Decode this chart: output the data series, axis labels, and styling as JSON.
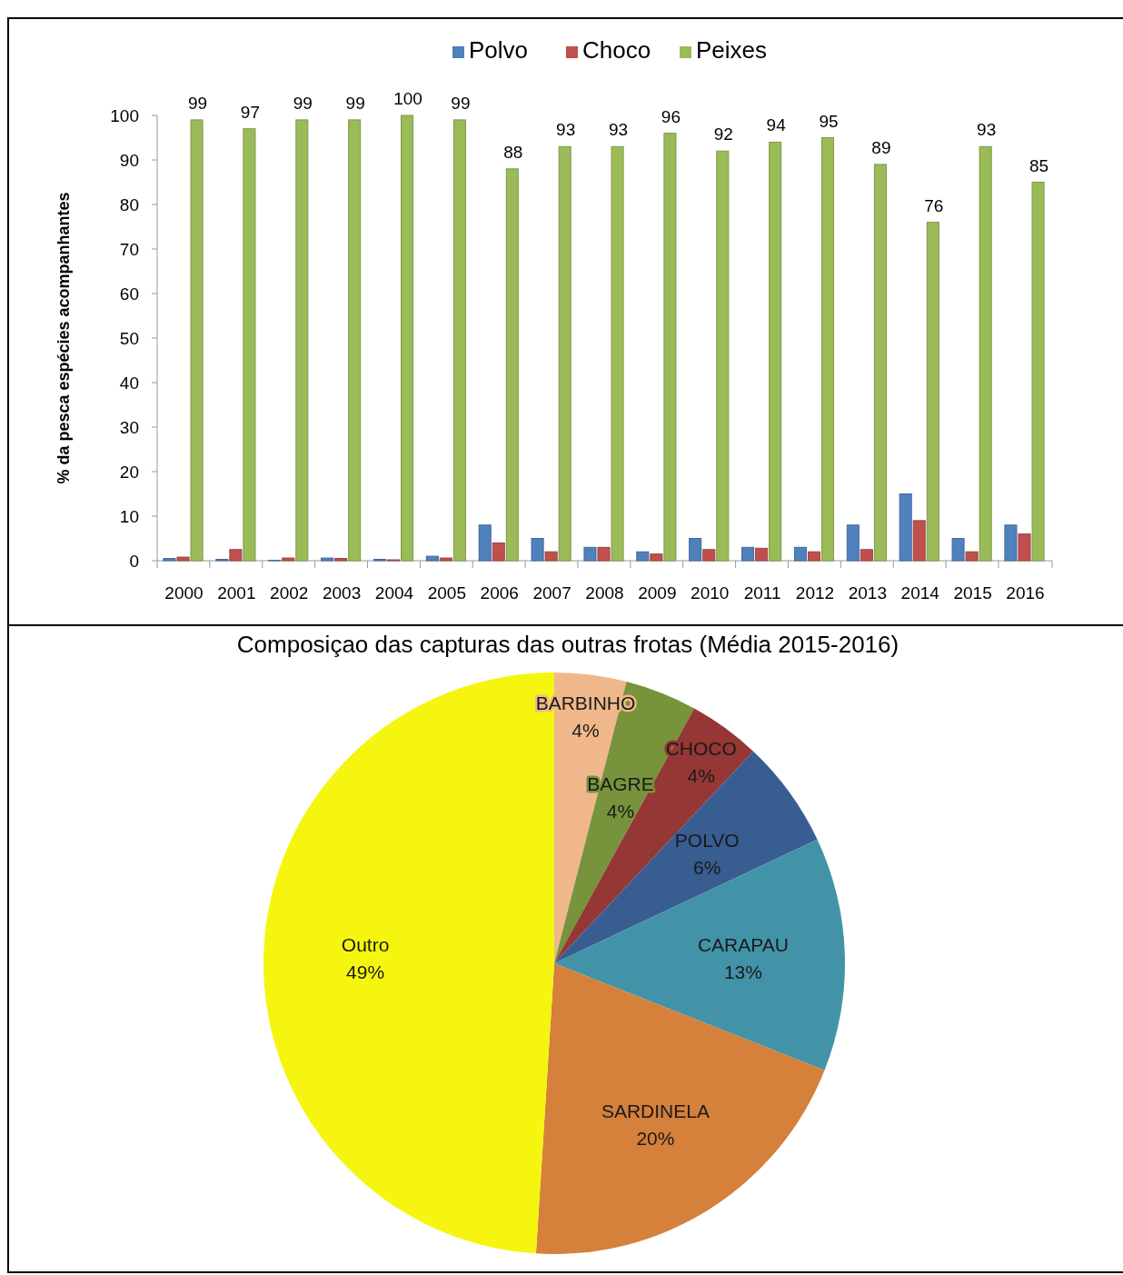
{
  "chart_data": [
    {
      "type": "bar",
      "ylabel": "% da pesca espécies acompanhantes",
      "categories": [
        "2000",
        "2001",
        "2002",
        "2003",
        "2004",
        "2005",
        "2006",
        "2007",
        "2008",
        "2009",
        "2010",
        "2011",
        "2012",
        "2013",
        "2014",
        "2015",
        "2016"
      ],
      "ylim": [
        0,
        100
      ],
      "yticks": [
        0,
        10,
        20,
        30,
        40,
        50,
        60,
        70,
        80,
        90,
        100
      ],
      "legend": "top",
      "grid": false,
      "series": [
        {
          "name": "Polvo",
          "color": "#4f81bd",
          "values": [
            0.5,
            0.3,
            0.1,
            0.6,
            0.3,
            1,
            8,
            5,
            3,
            2,
            5,
            3,
            3,
            8,
            15,
            5,
            8
          ]
        },
        {
          "name": "Choco",
          "color": "#c0504d",
          "values": [
            0.8,
            2.5,
            0.6,
            0.5,
            0.2,
            0.6,
            4,
            2,
            3,
            1.5,
            2.5,
            2.8,
            2,
            2.5,
            9,
            2,
            6
          ]
        },
        {
          "name": "Peixes",
          "color": "#9bbb59",
          "values": [
            99,
            97,
            99,
            99,
            100,
            99,
            88,
            93,
            93,
            96,
            92,
            94,
            95,
            89,
            76,
            93,
            85
          ],
          "value_labels": [
            "99",
            "97",
            "99",
            "99",
            "100",
            "99",
            "88",
            "93",
            "93",
            "96",
            "92",
            "94",
            "95",
            "89",
            "76",
            "93",
            "85"
          ]
        }
      ]
    },
    {
      "type": "pie",
      "title": "Composiçao das capturas das outras frotas (Média 2015-2016)",
      "categories": [
        "BARBINHO",
        "BAGRE",
        "CHOCO",
        "POLVO",
        "CARAPAU",
        "SARDINELA",
        "Outro"
      ],
      "values": [
        4,
        4,
        4,
        6,
        13,
        20,
        49
      ],
      "colors": [
        "#f0b88a",
        "#77933c",
        "#953735",
        "#375d91",
        "#4293a8",
        "#d5803b",
        "#f5f50f"
      ],
      "value_labels": [
        "4%",
        "4%",
        "4%",
        "6%",
        "13%",
        "20%",
        "49%"
      ]
    }
  ]
}
